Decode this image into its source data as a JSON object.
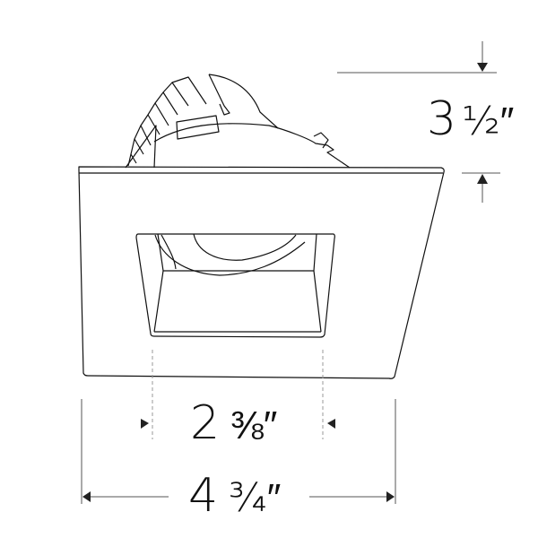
{
  "dimensions": {
    "height": {
      "whole": "3",
      "fraction": "½",
      "unit": "″"
    },
    "aperture_width": {
      "whole": "2",
      "fraction": "⅜",
      "unit": "″"
    },
    "trim_width": {
      "whole": "4",
      "fraction": "¾",
      "unit": "″"
    }
  },
  "colors": {
    "line": "#111111",
    "dimension_line": "#555555",
    "dashed_guide": "#999999"
  }
}
